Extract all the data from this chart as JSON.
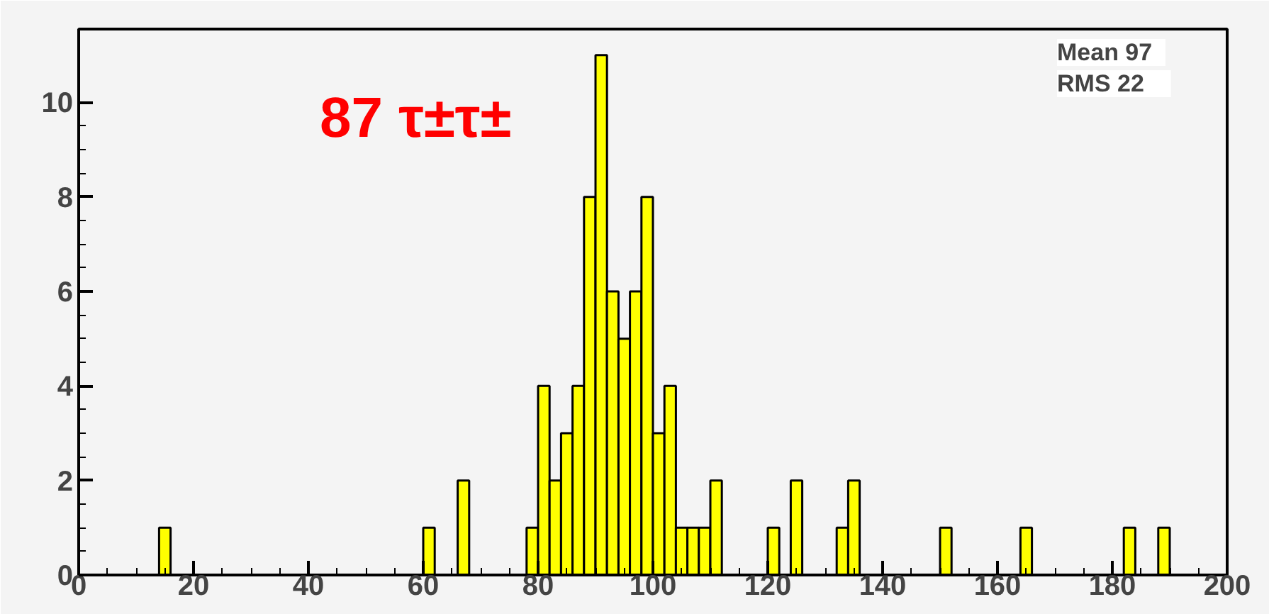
{
  "chart_data": {
    "type": "histogram",
    "bins": [
      0,
      2,
      4,
      6,
      8,
      10,
      12,
      14,
      16,
      18,
      20,
      22,
      24,
      26,
      28,
      30,
      32,
      34,
      36,
      38,
      40,
      42,
      44,
      46,
      48,
      50,
      52,
      54,
      56,
      58,
      60,
      62,
      64,
      66,
      68,
      70,
      72,
      74,
      76,
      78,
      80,
      82,
      84,
      86,
      88,
      90,
      92,
      94,
      96,
      98,
      100,
      102,
      104,
      106,
      108,
      110,
      112,
      114,
      116,
      118,
      120,
      122,
      124,
      126,
      128,
      130,
      132,
      134,
      136,
      138,
      140,
      142,
      144,
      146,
      148,
      150,
      152,
      154,
      156,
      158,
      160,
      162,
      164,
      166,
      168,
      170,
      172,
      174,
      176,
      178,
      180,
      182,
      184,
      186,
      188,
      190,
      192,
      194,
      196,
      198,
      200
    ],
    "values": [
      0,
      0,
      0,
      0,
      0,
      0,
      0,
      1,
      0,
      0,
      0,
      0,
      0,
      0,
      0,
      0,
      0,
      0,
      0,
      0,
      0,
      0,
      0,
      0,
      0,
      0,
      0,
      0,
      0,
      0,
      1,
      0,
      0,
      2,
      0,
      0,
      0,
      0,
      0,
      1,
      4,
      2,
      3,
      4,
      8,
      11,
      6,
      5,
      6,
      8,
      3,
      4,
      1,
      1,
      1,
      2,
      0,
      0,
      0,
      0,
      1,
      0,
      2,
      0,
      0,
      0,
      1,
      2,
      0,
      0,
      0,
      0,
      0,
      0,
      0,
      1,
      0,
      0,
      0,
      0,
      0,
      0,
      1,
      0,
      0,
      0,
      0,
      0,
      0,
      0,
      0,
      1,
      0,
      0,
      1,
      0,
      0,
      0,
      0,
      0
    ],
    "color": "#ffff00",
    "xlim": [
      0,
      200
    ],
    "xticks": [
      0,
      20,
      40,
      60,
      80,
      100,
      120,
      140,
      160,
      180,
      200
    ],
    "ylim": [
      0,
      11.55
    ],
    "yticks": [
      0,
      2,
      4,
      6,
      8,
      10
    ],
    "grid": false,
    "annotations": [
      "87 τ±τ±",
      "Mean   97",
      "RMS     22"
    ]
  }
}
